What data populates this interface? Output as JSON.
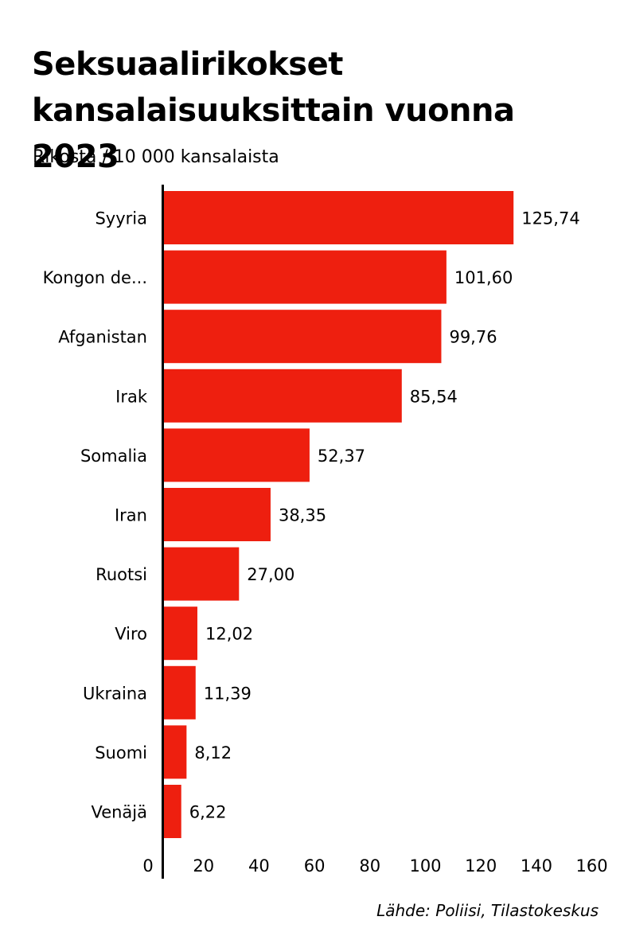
{
  "chart_data": {
    "type": "bar",
    "orientation": "horizontal",
    "title": "Seksuaalirikokset kansalaisuuksittain vuonna 2023",
    "subtitle": "Rikosta / 10 000 kansalaista",
    "categories": [
      "Syyria",
      "Kongon de...",
      "Afganistan",
      "Irak",
      "Somalia",
      "Iran",
      "Ruotsi",
      "Viro",
      "Ukraina",
      "Suomi",
      "Venäjä"
    ],
    "values": [
      125.74,
      101.6,
      99.76,
      85.54,
      52.37,
      38.35,
      27.0,
      12.02,
      11.39,
      8.12,
      6.22
    ],
    "value_labels": [
      "125,74",
      "101,60",
      "99,76",
      "85,54",
      "52,37",
      "38,35",
      "27,00",
      "12,02",
      "11,39",
      "8,12",
      "6,22"
    ],
    "xlim": [
      0,
      160
    ],
    "x_ticks": [
      0,
      20,
      40,
      60,
      80,
      100,
      120,
      140,
      160
    ],
    "grid": false,
    "legend": "none",
    "bar_color": "#ee1f0f",
    "source": "Lähde: Poliisi, Tilastokeskus"
  }
}
